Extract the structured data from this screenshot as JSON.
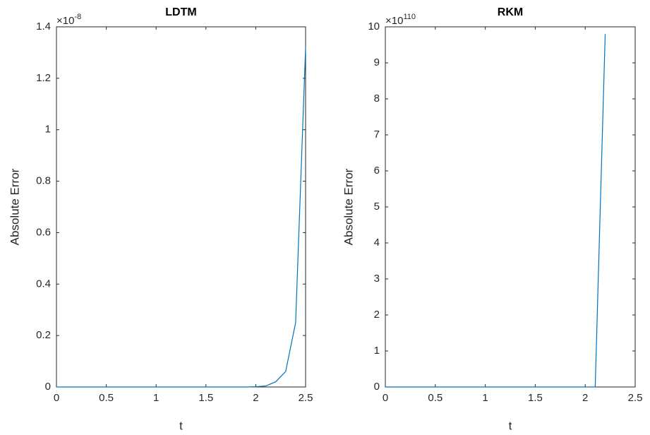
{
  "chart_data": [
    {
      "type": "line",
      "title": "LDTM",
      "x_label": "t",
      "y_label": "Absolute Error",
      "y_multiplier": "×10",
      "y_exponent": "-8",
      "x": [
        0,
        0.1,
        0.2,
        0.3,
        0.4,
        0.5,
        0.6,
        0.7,
        0.8,
        0.9,
        1,
        1.1,
        1.2,
        1.3,
        1.4,
        1.5,
        1.6,
        1.7,
        1.8,
        1.9,
        2,
        2.1,
        2.2,
        2.3,
        2.4,
        2.5
      ],
      "series": [
        {
          "color": "#0072bd",
          "values": [
            0,
            0,
            0,
            0,
            0,
            0,
            0,
            0,
            0,
            0,
            0,
            0,
            0,
            0,
            0,
            0,
            0,
            0,
            0,
            0,
            0.001,
            0.004,
            0.02,
            0.06,
            0.25,
            1.32
          ]
        }
      ],
      "xlim": [
        0,
        2.5
      ],
      "ylim": [
        0,
        1.4
      ],
      "xticks": [
        0,
        0.5,
        1,
        1.5,
        2,
        2.5
      ],
      "yticks": [
        0,
        0.2,
        0.4,
        0.6,
        0.8,
        1,
        1.2,
        1.4
      ]
    },
    {
      "type": "line",
      "title": "RKM",
      "x_label": "t",
      "y_label": "Absolute Error",
      "y_multiplier": "×10",
      "y_exponent": "110",
      "x": [
        0,
        0.1,
        0.2,
        0.3,
        0.4,
        0.5,
        0.6,
        0.7,
        0.8,
        0.9,
        1,
        1.1,
        1.2,
        1.3,
        1.4,
        1.5,
        1.6,
        1.7,
        1.8,
        1.9,
        2,
        2.1,
        2.2
      ],
      "series": [
        {
          "color": "#0072bd",
          "values": [
            0,
            0,
            0,
            0,
            0,
            0,
            0,
            0,
            0,
            0,
            0,
            0,
            0,
            0,
            0,
            0,
            0,
            0,
            0,
            0,
            0,
            0,
            9.8
          ]
        }
      ],
      "xlim": [
        0,
        2.5
      ],
      "ylim": [
        0,
        10
      ],
      "xticks": [
        0,
        0.5,
        1,
        1.5,
        2,
        2.5
      ],
      "yticks": [
        0,
        1,
        2,
        3,
        4,
        5,
        6,
        7,
        8,
        9,
        10
      ]
    }
  ]
}
